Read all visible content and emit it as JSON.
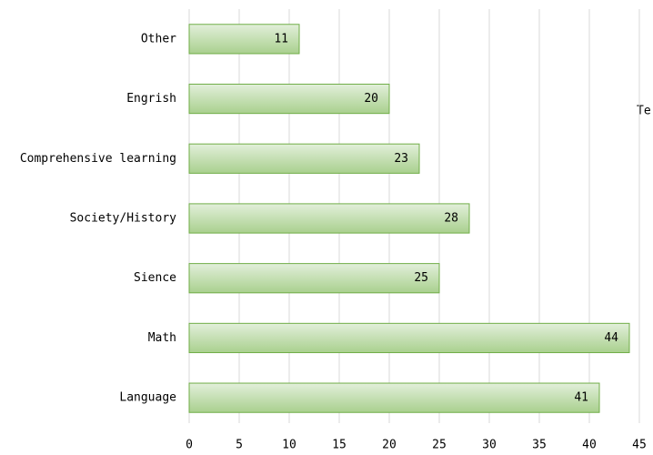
{
  "chart_data": {
    "type": "bar",
    "orientation": "horizontal",
    "categories": [
      "Other",
      "Engrish",
      "Comprehensive learning",
      "Society/History",
      "Sience",
      "Math",
      "Language"
    ],
    "values": [
      11,
      20,
      23,
      28,
      25,
      44,
      41
    ],
    "color": "#a9d08e",
    "edgecolor": "#70ad47",
    "xlim": [
      0,
      45
    ],
    "xticks": [
      0,
      5,
      10,
      15,
      20,
      25,
      30,
      35,
      40,
      45
    ],
    "grid": true,
    "annotation": "Te"
  }
}
